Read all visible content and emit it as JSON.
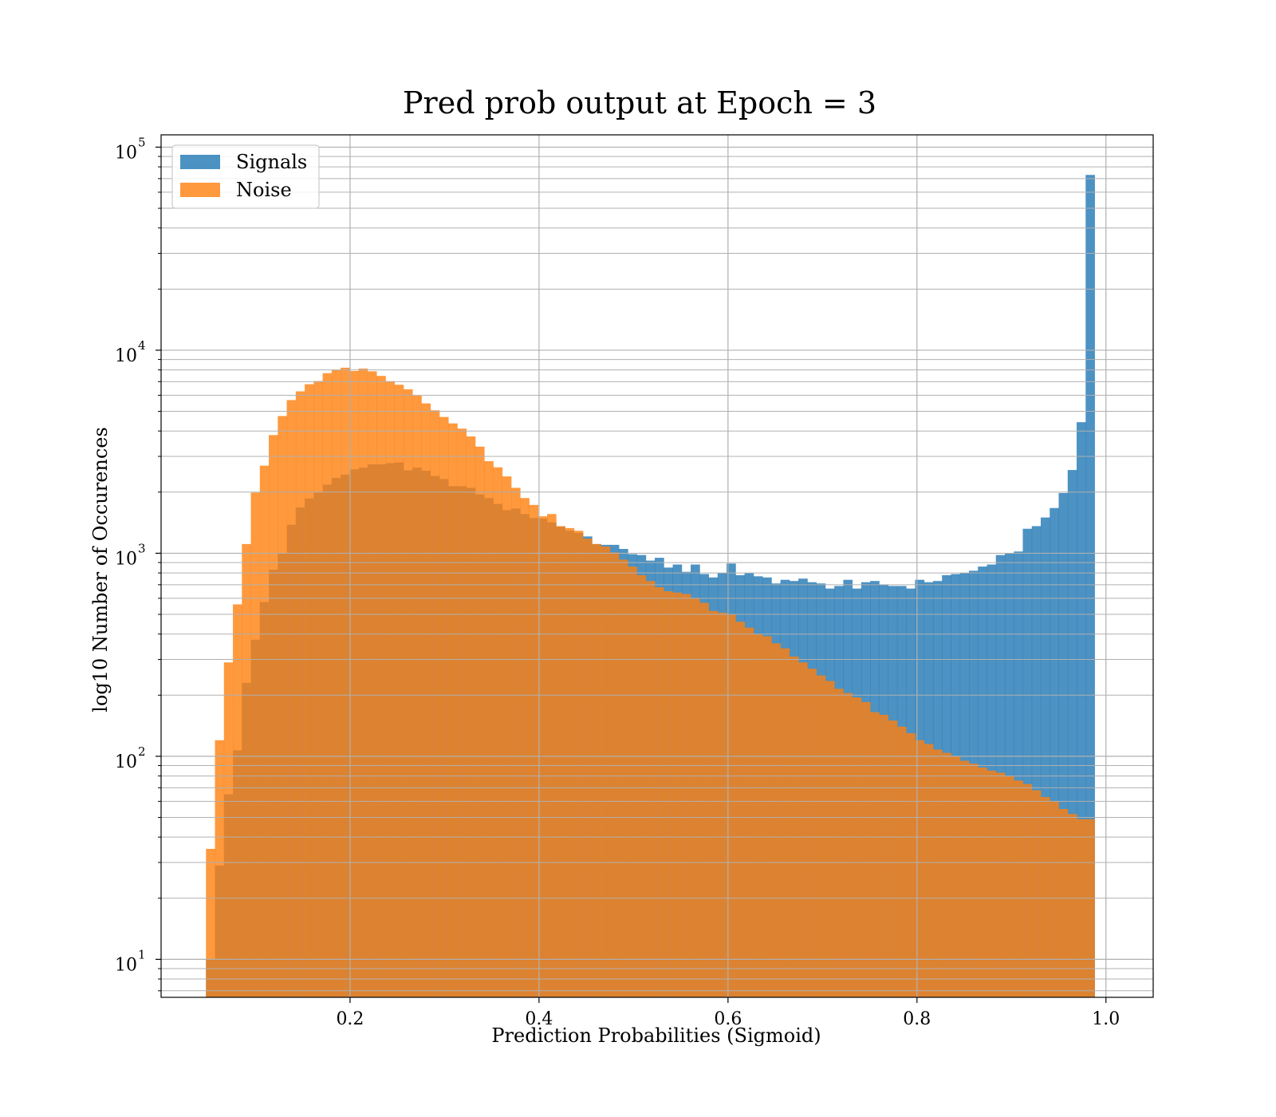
{
  "chart_data": {
    "type": "bar",
    "title": "Pred prob output at Epoch = 3",
    "xlabel": "Prediction Probabilities (Sigmoid)",
    "ylabel": "log10 Number of Occurences",
    "x_scale": "linear",
    "y_scale": "log",
    "xlim": [
      0.0,
      1.05
    ],
    "ylim": [
      6.5,
      115000
    ],
    "x_ticks": [
      0.2,
      0.4,
      0.6,
      0.8,
      1.0
    ],
    "x_tick_labels": [
      "0.2",
      "0.4",
      "0.6",
      "0.8",
      "1.0"
    ],
    "y_ticks": [
      10,
      100,
      1000,
      10000,
      100000
    ],
    "y_tick_labels": [
      {
        "base": "10",
        "exp": "1"
      },
      {
        "base": "10",
        "exp": "2"
      },
      {
        "base": "10",
        "exp": "3"
      },
      {
        "base": "10",
        "exp": "4"
      },
      {
        "base": "10",
        "exp": "5"
      }
    ],
    "grid": true,
    "minor_grid": true,
    "legend_position": "top-left",
    "bin_start": 0.0475,
    "bin_width": 0.0095,
    "series": [
      {
        "name": "Signals",
        "color": "#1f77b4",
        "opacity": 0.8,
        "values": [
          10,
          29,
          65,
          107,
          230,
          375,
          575,
          830,
          1000,
          1380,
          1680,
          1860,
          1990,
          2180,
          2350,
          2440,
          2590,
          2640,
          2740,
          2740,
          2780,
          2800,
          2560,
          2640,
          2550,
          2400,
          2320,
          2140,
          2140,
          2100,
          1950,
          1870,
          1750,
          1630,
          1660,
          1560,
          1490,
          1480,
          1420,
          1350,
          1290,
          1260,
          1210,
          1110,
          1100,
          1100,
          1050,
          990,
          980,
          920,
          950,
          850,
          880,
          810,
          880,
          790,
          760,
          800,
          890,
          780,
          800,
          770,
          760,
          710,
          740,
          730,
          750,
          720,
          710,
          670,
          690,
          740,
          670,
          720,
          730,
          700,
          690,
          690,
          670,
          740,
          720,
          730,
          780,
          790,
          800,
          820,
          860,
          880,
          980,
          1000,
          1020,
          1320,
          1360,
          1500,
          1670,
          1980,
          2570,
          4420,
          73000
        ],
        "left_edge_value": 10
      },
      {
        "name": "Noise",
        "color": "#ff7f0e",
        "opacity": 0.8,
        "values": [
          35,
          120,
          290,
          560,
          1110,
          1990,
          2700,
          3820,
          4740,
          5680,
          6270,
          6800,
          7050,
          7710,
          8000,
          8200,
          7900,
          8120,
          7870,
          7470,
          7040,
          6760,
          6420,
          5970,
          5470,
          5060,
          4690,
          4360,
          4110,
          3760,
          3350,
          2840,
          2650,
          2390,
          2100,
          1870,
          1730,
          1520,
          1560,
          1360,
          1330,
          1290,
          1180,
          1110,
          1080,
          1010,
          930,
          860,
          780,
          730,
          680,
          650,
          640,
          630,
          600,
          570,
          520,
          510,
          500,
          460,
          430,
          400,
          390,
          360,
          340,
          310,
          290,
          270,
          250,
          235,
          215,
          205,
          195,
          185,
          165,
          160,
          150,
          140,
          130,
          120,
          115,
          108,
          104,
          100,
          95,
          92,
          88,
          85,
          83,
          80,
          76,
          73,
          68,
          63,
          60,
          55,
          52,
          49,
          49
        ]
      }
    ]
  }
}
